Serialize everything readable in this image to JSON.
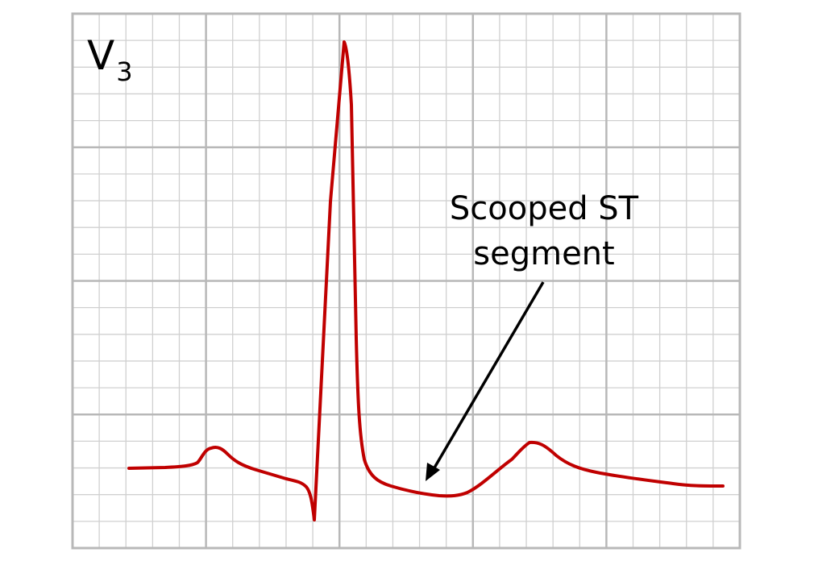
{
  "lead": {
    "name": "V",
    "subscript": "3"
  },
  "annotation": {
    "line1": "Scooped ST",
    "line2": "segment"
  },
  "colors": {
    "trace": "#c00000",
    "grid_minor": "#d0d0d0",
    "grid_major": "#b8b8b8",
    "text": "#000000",
    "arrow": "#000000"
  },
  "icons": {
    "arrow": "arrow-down-left-icon"
  }
}
